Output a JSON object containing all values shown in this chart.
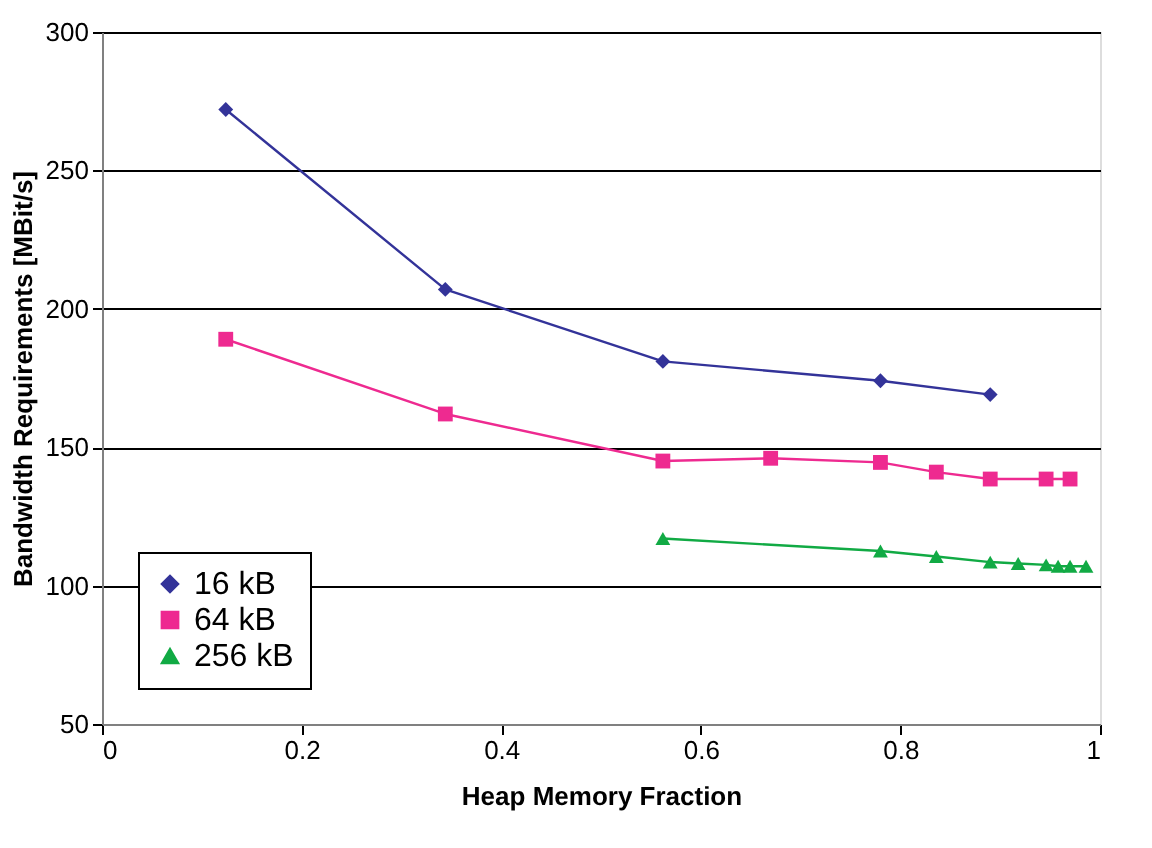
{
  "chart_data": {
    "type": "line",
    "xlabel": "Heap Memory Fraction",
    "ylabel": "Bandwidth Requirements [MBit/s]",
    "xlim": [
      0,
      1
    ],
    "xticks": [
      0,
      0.2,
      0.4,
      0.6,
      0.8,
      1
    ],
    "ylim": [
      50,
      300
    ],
    "yticks": [
      50,
      100,
      150,
      200,
      250,
      300
    ],
    "grid": "y",
    "legend": "bottom left",
    "series": [
      {
        "name": "16 kB",
        "color": "#333399",
        "marker": "diamond",
        "x": [
          0.124,
          0.344,
          0.562,
          0.78,
          0.89
        ],
        "values": [
          272,
          207,
          181,
          174,
          169
        ]
      },
      {
        "name": "64 kB",
        "color": "#ee2a90",
        "marker": "square",
        "x": [
          0.124,
          0.344,
          0.562,
          0.67,
          0.78,
          0.836,
          0.89,
          0.946,
          0.97
        ],
        "values": [
          189,
          162,
          145,
          146,
          144.5,
          141,
          138.5,
          138.5,
          138.5
        ]
      },
      {
        "name": "256 kB",
        "color": "#11aa44",
        "marker": "triangle",
        "x": [
          0.562,
          0.78,
          0.836,
          0.89,
          0.918,
          0.946,
          0.958,
          0.97,
          0.986
        ],
        "values": [
          117,
          112.5,
          110.5,
          108.5,
          108,
          107.5,
          107,
          107,
          107
        ]
      }
    ]
  }
}
